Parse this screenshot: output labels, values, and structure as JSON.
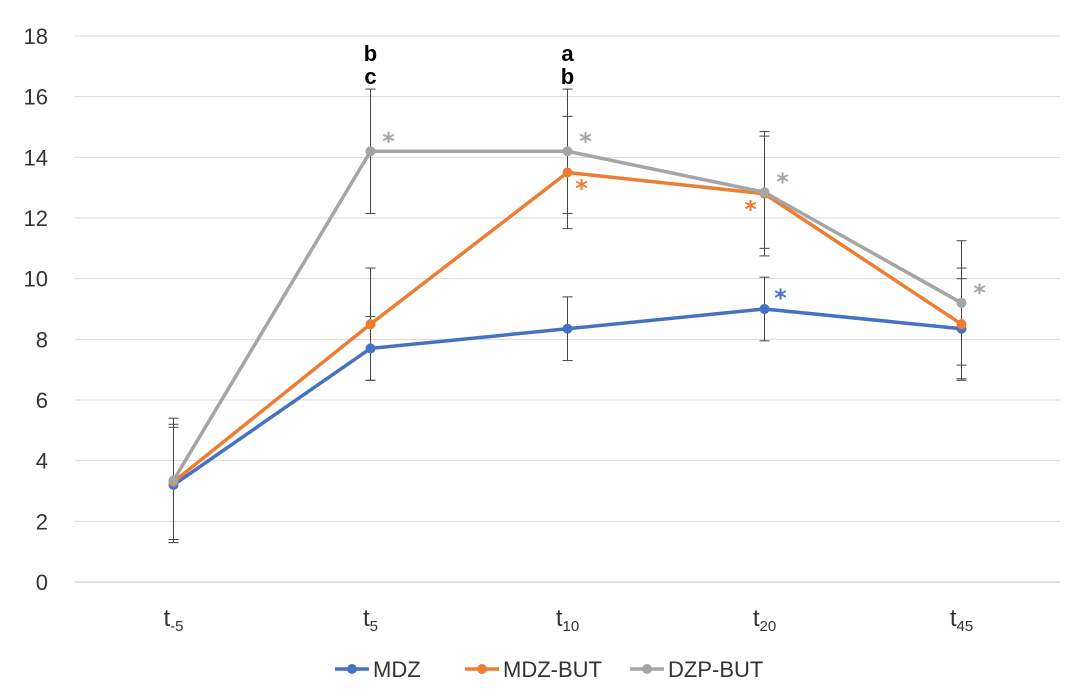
{
  "chart_data": {
    "type": "line",
    "title": "",
    "xlabel": "",
    "ylabel": "",
    "ylim": [
      0,
      18
    ],
    "yticks": [
      0,
      2,
      4,
      6,
      8,
      10,
      12,
      14,
      16,
      18
    ],
    "grid": true,
    "legend_position": "bottom",
    "categories": [
      {
        "base": "t",
        "sub": "-5"
      },
      {
        "base": "t",
        "sub": "5"
      },
      {
        "base": "t",
        "sub": "10"
      },
      {
        "base": "t",
        "sub": "20"
      },
      {
        "base": "t",
        "sub": "45"
      }
    ],
    "series": [
      {
        "name": "MDZ",
        "color": "#4472C4",
        "values": [
          3.2,
          7.7,
          8.35,
          9.0,
          8.35
        ],
        "err": [
          1.9,
          1.05,
          1.05,
          1.05,
          1.65
        ]
      },
      {
        "name": "MDZ-BUT",
        "color": "#ED7D31",
        "values": [
          3.3,
          8.5,
          13.5,
          12.8,
          8.5
        ],
        "err": [
          1.9,
          1.85,
          1.85,
          2.05,
          1.85
        ]
      },
      {
        "name": "DZP-BUT",
        "color": "#A5A5A5",
        "values": [
          3.35,
          14.2,
          14.2,
          12.85,
          9.2
        ],
        "err": [
          2.05,
          2.05,
          2.05,
          1.85,
          2.05
        ]
      }
    ],
    "letter_annotations": [
      {
        "index": 1,
        "lines": [
          "b",
          "c"
        ]
      },
      {
        "index": 2,
        "lines": [
          "a",
          "b"
        ]
      }
    ],
    "stars": [
      {
        "series": 2,
        "index": 1,
        "text": "*",
        "color": "#A5A5A5"
      },
      {
        "series": 2,
        "index": 2,
        "text": "*",
        "color": "#A5A5A5"
      },
      {
        "series": 1,
        "index": 2,
        "text": "*",
        "color": "#ED7D31"
      },
      {
        "series": 1,
        "index": 3,
        "text": "*",
        "color": "#ED7D31"
      },
      {
        "series": 2,
        "index": 3,
        "text": "*",
        "color": "#A5A5A5"
      },
      {
        "series": 0,
        "index": 3,
        "text": "*",
        "color": "#4472C4"
      },
      {
        "series": 2,
        "index": 4,
        "text": "*",
        "color": "#A5A5A5"
      }
    ]
  }
}
